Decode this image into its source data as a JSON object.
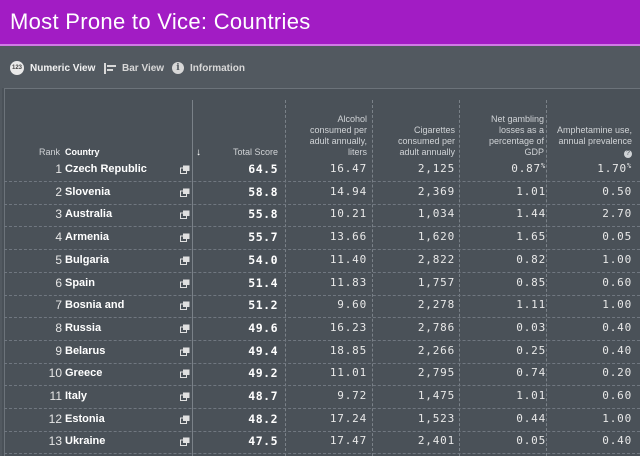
{
  "title": "Most Prone to Vice: Countries",
  "toolbar": {
    "numeric_icon": "123",
    "numeric": "Numeric View",
    "bar": "Bar View",
    "info": "Information"
  },
  "headers": {
    "rank": "Rank",
    "country": "Country",
    "sort_arrow": "↓",
    "total": "Total Score",
    "alcohol": "Alcohol consumed per adult annually, liters",
    "cigarettes": "Cigarettes consumed per adult annually",
    "gambling": "Net gambling losses as a percentage of GDP",
    "amphetamine": "Amphetamine use, annual prevalence"
  },
  "rows": [
    {
      "rank": "1",
      "country": "Czech Republic",
      "total": "64.5",
      "alcohol": "16.47",
      "cigarettes": "2,125",
      "gambling": "0.87",
      "amphetamine": "1.70"
    },
    {
      "rank": "2",
      "country": "Slovenia",
      "total": "58.8",
      "alcohol": "14.94",
      "cigarettes": "2,369",
      "gambling": "1.01",
      "amphetamine": "0.50"
    },
    {
      "rank": "3",
      "country": "Australia",
      "total": "55.8",
      "alcohol": "10.21",
      "cigarettes": "1,034",
      "gambling": "1.44",
      "amphetamine": "2.70"
    },
    {
      "rank": "4",
      "country": "Armenia",
      "total": "55.7",
      "alcohol": "13.66",
      "cigarettes": "1,620",
      "gambling": "1.65",
      "amphetamine": "0.05"
    },
    {
      "rank": "5",
      "country": "Bulgaria",
      "total": "54.0",
      "alcohol": "11.40",
      "cigarettes": "2,822",
      "gambling": "0.82",
      "amphetamine": "1.00"
    },
    {
      "rank": "6",
      "country": "Spain",
      "total": "51.4",
      "alcohol": "11.83",
      "cigarettes": "1,757",
      "gambling": "0.85",
      "amphetamine": "0.60"
    },
    {
      "rank": "7",
      "country": "Bosnia and",
      "total": "51.2",
      "alcohol": "9.60",
      "cigarettes": "2,278",
      "gambling": "1.11",
      "amphetamine": "1.00"
    },
    {
      "rank": "8",
      "country": "Russia",
      "total": "49.6",
      "alcohol": "16.23",
      "cigarettes": "2,786",
      "gambling": "0.03",
      "amphetamine": "0.40"
    },
    {
      "rank": "9",
      "country": "Belarus",
      "total": "49.4",
      "alcohol": "18.85",
      "cigarettes": "2,266",
      "gambling": "0.25",
      "amphetamine": "0.40"
    },
    {
      "rank": "10",
      "country": "Greece",
      "total": "49.2",
      "alcohol": "11.01",
      "cigarettes": "2,795",
      "gambling": "0.74",
      "amphetamine": "0.20"
    },
    {
      "rank": "11",
      "country": "Italy",
      "total": "48.7",
      "alcohol": "9.72",
      "cigarettes": "1,475",
      "gambling": "1.01",
      "amphetamine": "0.60"
    },
    {
      "rank": "12",
      "country": "Estonia",
      "total": "48.2",
      "alcohol": "17.24",
      "cigarettes": "1,523",
      "gambling": "0.44",
      "amphetamine": "1.00"
    },
    {
      "rank": "13",
      "country": "Ukraine",
      "total": "47.5",
      "alcohol": "17.47",
      "cigarettes": "2,401",
      "gambling": "0.05",
      "amphetamine": "0.40"
    }
  ],
  "first_row_units": {
    "gambling": "%",
    "amphetamine": "%"
  },
  "colors": {
    "title_bar": "#a21cc4",
    "background": "#525960",
    "table_bg": "#4a5158"
  },
  "icons": {
    "numeric": "numeric-view-icon",
    "bar": "bar-view-icon",
    "info": "information-icon",
    "open": "open-external-icon",
    "help": "help-icon"
  }
}
